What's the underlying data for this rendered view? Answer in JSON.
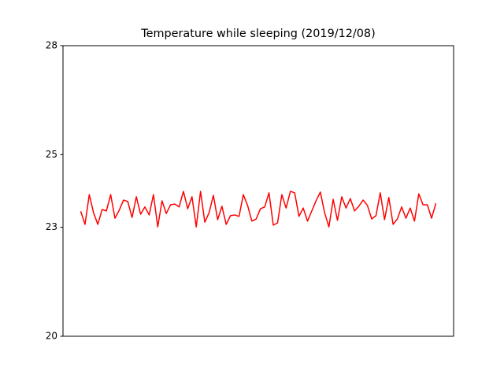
{
  "chart_data": {
    "type": "line",
    "title": "Temperature while sleeping (2019/12/08)",
    "color": "#ff0000",
    "values": [
      23.44,
      23.08,
      23.9,
      23.4,
      23.08,
      23.49,
      23.45,
      23.9,
      23.25,
      23.47,
      23.75,
      23.71,
      23.27,
      23.84,
      23.36,
      23.56,
      23.34,
      23.9,
      23.01,
      23.73,
      23.38,
      23.62,
      23.64,
      23.56,
      23.99,
      23.51,
      23.84,
      23.01,
      23.99,
      23.14,
      23.4,
      23.88,
      23.21,
      23.58,
      23.08,
      23.32,
      23.34,
      23.3,
      23.9,
      23.6,
      23.17,
      23.23,
      23.51,
      23.56,
      23.95,
      23.06,
      23.12,
      23.9,
      23.53,
      23.99,
      23.95,
      23.3,
      23.53,
      23.17,
      23.45,
      23.73,
      23.97,
      23.4,
      23.01,
      23.77,
      23.19,
      23.84,
      23.53,
      23.79,
      23.45,
      23.58,
      23.75,
      23.6,
      23.23,
      23.32,
      23.95,
      23.21,
      23.82,
      23.08,
      23.23,
      23.56,
      23.25,
      23.53,
      23.17,
      23.92,
      23.62,
      23.62,
      23.25,
      23.66
    ],
    "ylim": [
      20,
      28
    ],
    "yticks": [
      20,
      23,
      25,
      28
    ],
    "grid": false
  }
}
